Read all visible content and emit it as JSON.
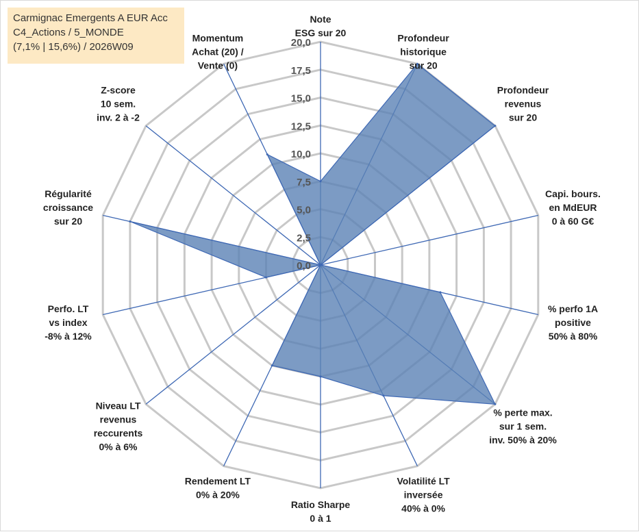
{
  "chart_data": {
    "type": "radar",
    "title_lines": [
      "Carmignac Emergents A EUR Acc",
      "C4_Actions / 5_MONDE",
      "(7,1% | 15,6%) / 2026W09"
    ],
    "ylim": [
      0,
      20
    ],
    "tick_labels": [
      "0,0",
      "2,5",
      "5,0",
      "7,5",
      "10,0",
      "12,5",
      "15,0",
      "17,5",
      "20,0"
    ],
    "axes": [
      {
        "label": [
          "Note",
          "ESG sur 20"
        ]
      },
      {
        "label": [
          "Profondeur",
          "historique",
          "sur 20"
        ]
      },
      {
        "label": [
          "Profondeur",
          "revenus",
          "sur 20"
        ]
      },
      {
        "label": [
          "Capi. bours.",
          "en MdEUR",
          "0 à 60 G€"
        ]
      },
      {
        "label": [
          "% perfo 1A",
          "positive",
          "50% à 80%"
        ]
      },
      {
        "label": [
          "% perte max.",
          "sur 1 sem.",
          "inv. 50% à 20%"
        ]
      },
      {
        "label": [
          "Volatilité LT",
          "inversée",
          "40% à 0%"
        ]
      },
      {
        "label": [
          "Ratio Sharpe",
          "0 à 1"
        ]
      },
      {
        "label": [
          "Rendement LT",
          "0% à 20%"
        ]
      },
      {
        "label": [
          "Niveau LT",
          "revenus",
          "reccurents",
          "0% à 6%"
        ]
      },
      {
        "label": [
          "Perfo. LT",
          "vs index",
          "-8% à 12%"
        ]
      },
      {
        "label": [
          "Régularité",
          "croissance",
          "sur 20"
        ]
      },
      {
        "label": [
          "Z-score",
          "10 sem.",
          "inv. 2 à -2"
        ]
      },
      {
        "label": [
          "Momentum",
          "Achat (20) /",
          "Vente (0)"
        ]
      }
    ],
    "series": [
      {
        "name": "Carmignac Emergents A EUR Acc",
        "color": "#5b82b5",
        "values": [
          7.5,
          20.0,
          20.0,
          0.0,
          11.0,
          20.0,
          13.0,
          10.0,
          10.0,
          0.0,
          5.0,
          17.5,
          0.0,
          11.0
        ]
      }
    ]
  }
}
